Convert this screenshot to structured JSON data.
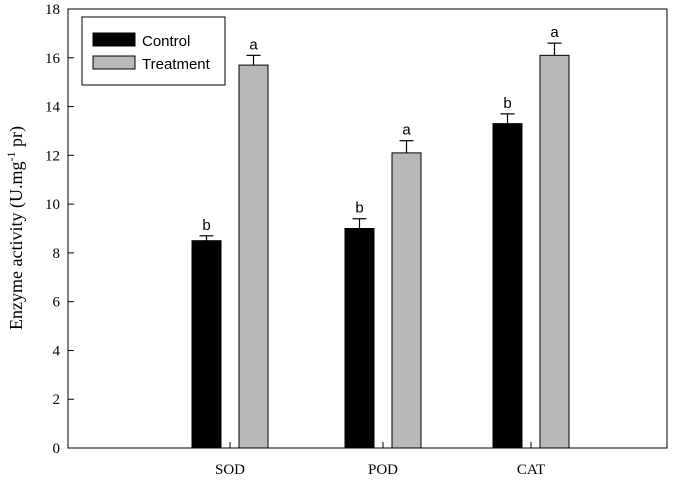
{
  "chart_data": {
    "type": "bar",
    "categories": [
      "SOD",
      "POD",
      "CAT"
    ],
    "series": [
      {
        "name": "Control",
        "color": "#000000",
        "values": [
          8.5,
          9.0,
          13.3
        ],
        "errors": [
          0.2,
          0.4,
          0.4
        ],
        "significance": [
          "b",
          "b",
          "b"
        ]
      },
      {
        "name": "Treatment",
        "color": "#b8b8b8",
        "values": [
          15.7,
          12.1,
          16.1
        ],
        "errors": [
          0.4,
          0.5,
          0.5
        ],
        "significance": [
          "a",
          "a",
          "a"
        ]
      }
    ],
    "ylabel": {
      "main": "Enzyme activity (U.mg",
      "sup": "-1",
      "tail": " pr)"
    },
    "ylim": [
      0,
      18
    ],
    "yticks": [
      "0",
      "2",
      "4",
      "6",
      "8",
      "10",
      "12",
      "14",
      "16",
      "18"
    ],
    "grid": false,
    "legend_position": "top-left"
  }
}
